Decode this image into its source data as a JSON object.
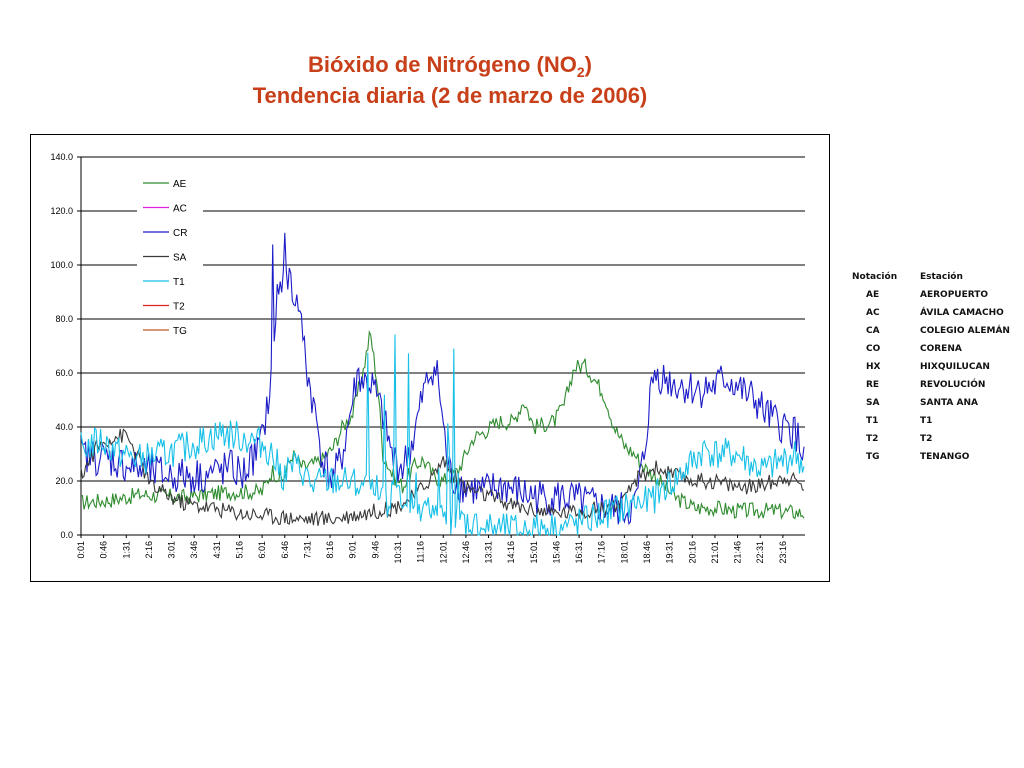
{
  "title": {
    "line1_prefix": "Bióxido de Nitrógeno (NO",
    "line1_sub": "2",
    "line1_suffix": ")",
    "line2": "Tendencia diaria (2 de marzo de 2006)"
  },
  "chart_data": {
    "type": "line",
    "ylim": [
      0,
      140
    ],
    "yticks": [
      "0.0",
      "20.0",
      "40.0",
      "60.0",
      "80.0",
      "100.0",
      "120.0",
      "140.0"
    ],
    "x_tick_labels": [
      "0:01",
      "0:46",
      "1:31",
      "2:16",
      "3:01",
      "3:46",
      "4:31",
      "5:16",
      "6:01",
      "6:46",
      "7:31",
      "8:16",
      "9:01",
      "9:46",
      "10:31",
      "11:16",
      "12:01",
      "12:46",
      "13:31",
      "14:16",
      "15:01",
      "15:46",
      "16:31",
      "17:16",
      "18:01",
      "18:46",
      "19:31",
      "20:16",
      "21:01",
      "21:46",
      "22:31",
      "23:16"
    ],
    "series": [
      {
        "name": "AE",
        "color": "#2e8b2e",
        "keyframes": [
          [
            0,
            12
          ],
          [
            60,
            13
          ],
          [
            120,
            15
          ],
          [
            200,
            14
          ],
          [
            300,
            16
          ],
          [
            360,
            16
          ],
          [
            380,
            24
          ],
          [
            400,
            20
          ],
          [
            420,
            30
          ],
          [
            440,
            25
          ],
          [
            460,
            26
          ],
          [
            480,
            28
          ],
          [
            500,
            32
          ],
          [
            520,
            40
          ],
          [
            540,
            45
          ],
          [
            560,
            60
          ],
          [
            575,
            75
          ],
          [
            590,
            55
          ],
          [
            600,
            30
          ],
          [
            620,
            22
          ],
          [
            640,
            18
          ],
          [
            660,
            25
          ],
          [
            680,
            28
          ],
          [
            700,
            22
          ],
          [
            720,
            20
          ],
          [
            750,
            24
          ],
          [
            780,
            36
          ],
          [
            800,
            38
          ],
          [
            830,
            42
          ],
          [
            860,
            42
          ],
          [
            880,
            50
          ],
          [
            900,
            40
          ],
          [
            940,
            42
          ],
          [
            960,
            48
          ],
          [
            980,
            62
          ],
          [
            1000,
            63
          ],
          [
            1020,
            58
          ],
          [
            1040,
            52
          ],
          [
            1060,
            40
          ],
          [
            1080,
            33
          ],
          [
            1100,
            30
          ],
          [
            1120,
            25
          ],
          [
            1140,
            22
          ],
          [
            1160,
            18
          ],
          [
            1180,
            14
          ],
          [
            1200,
            12
          ],
          [
            1220,
            10
          ],
          [
            1260,
            10
          ],
          [
            1300,
            9
          ],
          [
            1380,
            9
          ],
          [
            1439,
            8
          ]
        ]
      },
      {
        "name": "AC",
        "color": "#e020e0",
        "keyframes": []
      },
      {
        "name": "CR",
        "color": "#1c1cc8",
        "keyframes": [
          [
            0,
            30
          ],
          [
            60,
            28
          ],
          [
            120,
            24
          ],
          [
            180,
            22
          ],
          [
            240,
            22
          ],
          [
            300,
            25
          ],
          [
            320,
            22
          ],
          [
            340,
            28
          ],
          [
            360,
            35
          ],
          [
            370,
            48
          ],
          [
            380,
            58
          ],
          [
            390,
            90
          ],
          [
            400,
            95
          ],
          [
            410,
            90
          ],
          [
            420,
            92
          ],
          [
            430,
            85
          ],
          [
            440,
            76
          ],
          [
            450,
            60
          ],
          [
            460,
            50
          ],
          [
            470,
            40
          ],
          [
            480,
            28
          ],
          [
            500,
            20
          ],
          [
            520,
            30
          ],
          [
            540,
            50
          ],
          [
            550,
            60
          ],
          [
            560,
            57
          ],
          [
            580,
            55
          ],
          [
            600,
            44
          ],
          [
            620,
            28
          ],
          [
            640,
            25
          ],
          [
            660,
            35
          ],
          [
            680,
            52
          ],
          [
            700,
            63
          ],
          [
            710,
            58
          ],
          [
            720,
            40
          ],
          [
            730,
            25
          ],
          [
            740,
            20
          ],
          [
            760,
            18
          ],
          [
            800,
            16
          ],
          [
            840,
            18
          ],
          [
            880,
            15
          ],
          [
            920,
            14
          ],
          [
            960,
            14
          ],
          [
            1000,
            12
          ],
          [
            1040,
            10
          ],
          [
            1080,
            9
          ],
          [
            1100,
            10
          ],
          [
            1120,
            30
          ],
          [
            1130,
            50
          ],
          [
            1140,
            60
          ],
          [
            1160,
            58
          ],
          [
            1180,
            56
          ],
          [
            1200,
            55
          ],
          [
            1220,
            54
          ],
          [
            1240,
            54
          ],
          [
            1260,
            55
          ],
          [
            1280,
            58
          ],
          [
            1300,
            56
          ],
          [
            1320,
            52
          ],
          [
            1340,
            50
          ],
          [
            1360,
            45
          ],
          [
            1380,
            42
          ],
          [
            1400,
            40
          ],
          [
            1420,
            38
          ],
          [
            1439,
            28
          ]
        ]
      },
      {
        "name": "SA",
        "color": "#3a3a3a",
        "keyframes": [
          [
            0,
            22
          ],
          [
            30,
            32
          ],
          [
            60,
            36
          ],
          [
            90,
            37
          ],
          [
            110,
            30
          ],
          [
            140,
            18
          ],
          [
            200,
            12
          ],
          [
            260,
            10
          ],
          [
            320,
            8
          ],
          [
            380,
            7
          ],
          [
            440,
            6
          ],
          [
            500,
            6
          ],
          [
            560,
            8
          ],
          [
            620,
            10
          ],
          [
            660,
            14
          ],
          [
            700,
            22
          ],
          [
            720,
            28
          ],
          [
            740,
            22
          ],
          [
            760,
            18
          ],
          [
            800,
            15
          ],
          [
            840,
            12
          ],
          [
            880,
            10
          ],
          [
            940,
            8
          ],
          [
            1000,
            9
          ],
          [
            1040,
            10
          ],
          [
            1080,
            12
          ],
          [
            1100,
            20
          ],
          [
            1140,
            25
          ],
          [
            1180,
            22
          ],
          [
            1220,
            20
          ],
          [
            1260,
            20
          ],
          [
            1300,
            18
          ],
          [
            1340,
            18
          ],
          [
            1380,
            20
          ],
          [
            1400,
            22
          ],
          [
            1439,
            18
          ]
        ]
      },
      {
        "name": "T1",
        "color": "#18c0e8",
        "keyframes": [
          [
            0,
            32
          ],
          [
            40,
            35
          ],
          [
            80,
            30
          ],
          [
            120,
            28
          ],
          [
            160,
            30
          ],
          [
            200,
            32
          ],
          [
            240,
            35
          ],
          [
            280,
            38
          ],
          [
            320,
            36
          ],
          [
            360,
            34
          ],
          [
            380,
            30
          ],
          [
            400,
            22
          ],
          [
            420,
            26
          ],
          [
            440,
            24
          ],
          [
            460,
            18
          ],
          [
            480,
            20
          ],
          [
            520,
            20
          ],
          [
            560,
            18
          ],
          [
            580,
            15
          ],
          [
            600,
            18
          ],
          [
            620,
            15
          ],
          [
            640,
            14
          ],
          [
            660,
            12
          ],
          [
            680,
            10
          ],
          [
            700,
            8
          ],
          [
            720,
            7
          ],
          [
            760,
            5
          ],
          [
            800,
            3
          ],
          [
            840,
            2
          ],
          [
            880,
            2
          ],
          [
            920,
            3
          ],
          [
            960,
            3
          ],
          [
            1000,
            5
          ],
          [
            1040,
            8
          ],
          [
            1080,
            10
          ],
          [
            1100,
            12
          ],
          [
            1120,
            12
          ],
          [
            1140,
            14
          ],
          [
            1160,
            18
          ],
          [
            1180,
            20
          ],
          [
            1200,
            24
          ],
          [
            1220,
            28
          ],
          [
            1240,
            32
          ],
          [
            1260,
            30
          ],
          [
            1280,
            30
          ],
          [
            1300,
            30
          ],
          [
            1320,
            28
          ],
          [
            1340,
            25
          ],
          [
            1360,
            24
          ],
          [
            1380,
            26
          ],
          [
            1400,
            28
          ],
          [
            1420,
            30
          ],
          [
            1439,
            25
          ]
        ]
      },
      {
        "name": "T2",
        "color": "#e02020",
        "keyframes": []
      },
      {
        "name": "TG",
        "color": "#c05a28",
        "keyframes": []
      }
    ]
  },
  "station_table": {
    "headers": [
      "Notación",
      "Estación"
    ],
    "rows": [
      [
        "AE",
        "AEROPUERTO"
      ],
      [
        "AC",
        "ÁVILA CAMACHO"
      ],
      [
        "CA",
        "COLEGIO ALEMÁN"
      ],
      [
        "CO",
        "CORENA"
      ],
      [
        "HX",
        "HIXQUILUCAN"
      ],
      [
        "RE",
        "REVOLUCIÓN"
      ],
      [
        "SA",
        "SANTA ANA"
      ],
      [
        "T1",
        "T1"
      ],
      [
        "T2",
        "T2"
      ],
      [
        "TG",
        "TENANGO"
      ]
    ]
  }
}
